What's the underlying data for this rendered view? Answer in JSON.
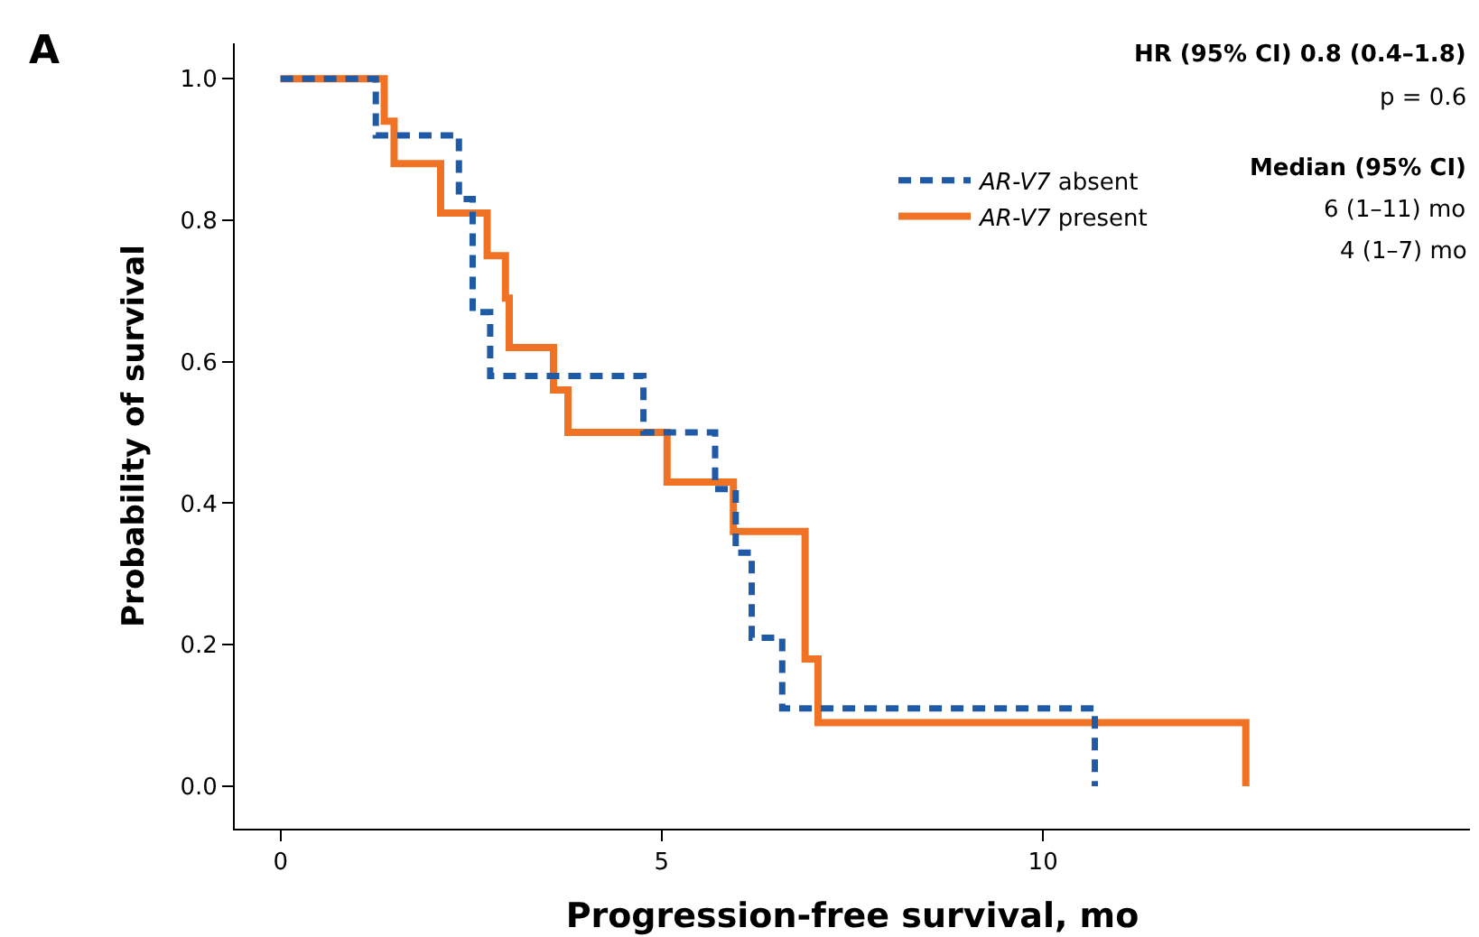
{
  "chart_data": {
    "type": "step",
    "xlabel": "Progression-free survival, mo",
    "ylabel": "Probability of survival",
    "series": [
      {
        "name": "AR-V7 absent",
        "color": "#1f5aa6",
        "line_style": "dashed",
        "x": [
          0,
          1.25,
          2.34,
          2.52,
          2.75,
          4.76,
          5.7,
          5.97,
          6.18,
          6.58,
          10.68,
          10.68
        ],
        "values": [
          1.0,
          0.92,
          0.83,
          0.67,
          0.58,
          0.5,
          0.42,
          0.33,
          0.21,
          0.11,
          0.11,
          0.0
        ]
      },
      {
        "name": "AR-V7 present",
        "color": "#f07325",
        "line_style": "solid",
        "x": [
          0,
          1.36,
          1.49,
          2.1,
          2.71,
          2.95,
          3.0,
          3.58,
          3.77,
          5.07,
          5.94,
          6.88,
          7.05,
          12.66,
          12.66
        ],
        "values": [
          1.0,
          0.94,
          0.88,
          0.81,
          0.75,
          0.69,
          0.62,
          0.56,
          0.5,
          0.43,
          0.36,
          0.18,
          0.09,
          0.09,
          0.0
        ]
      }
    ],
    "xlim": [
      -0.6,
      15.6
    ],
    "xticks": [
      0,
      5,
      10
    ],
    "ylim": [
      -0.06,
      1.05
    ],
    "yticks": [
      {
        "value": 0,
        "label": "0.0"
      },
      {
        "value": 0.2,
        "label": "0.2"
      },
      {
        "value": 0.4,
        "label": "0.4"
      },
      {
        "value": 0.6,
        "label": "0.6"
      },
      {
        "value": 0.8,
        "label": "0.8"
      },
      {
        "value": 1.0,
        "label": "1.0"
      }
    ],
    "legend": "top right",
    "annotations": [
      "A",
      "HR (95% CI) 0.8 (0.4–1.8)",
      "p = 0.6",
      "Median (95% CI)",
      "6 (1–11) mo",
      "4 (1–7) mo"
    ]
  }
}
